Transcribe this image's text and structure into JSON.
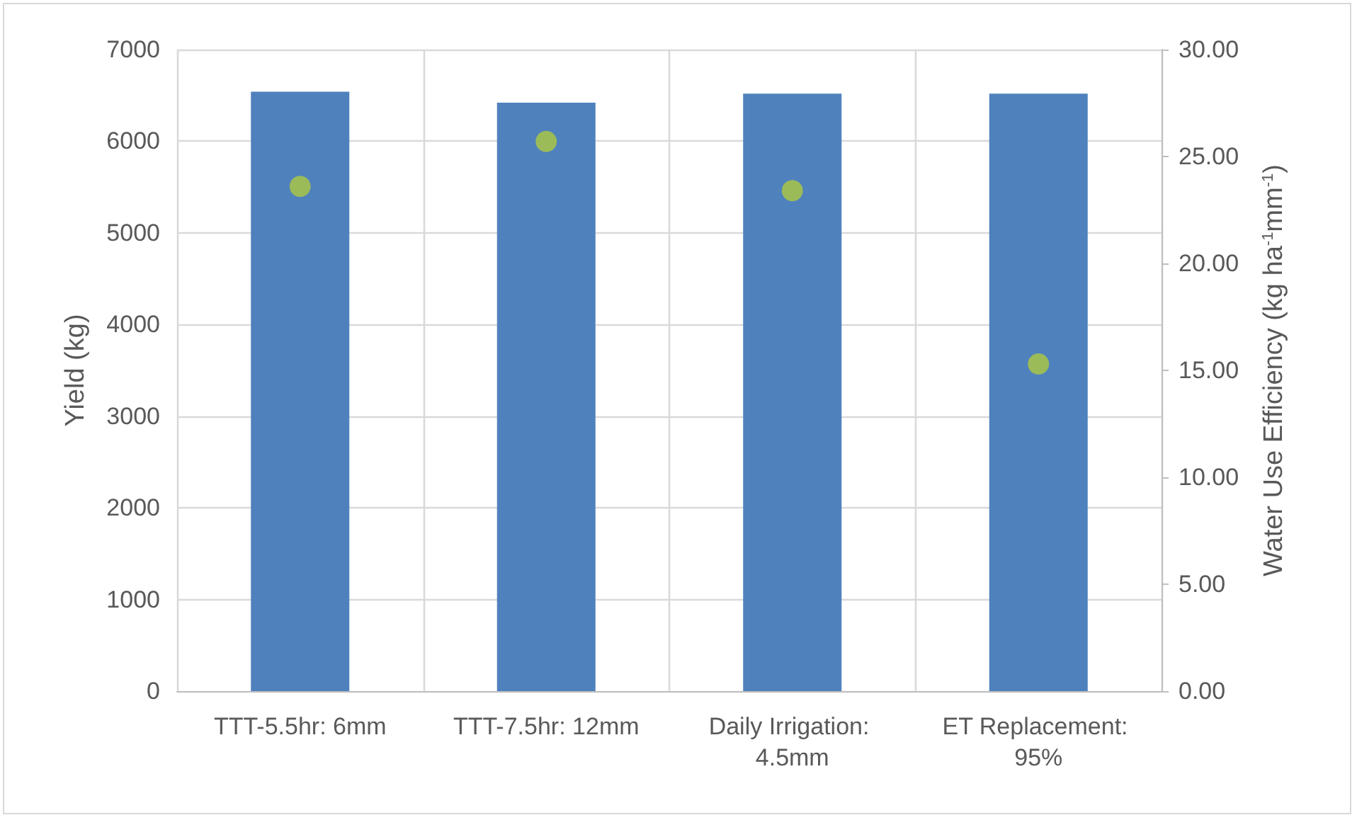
{
  "chart_data": {
    "type": "bar",
    "categories": [
      "TTT-5.5hr: 6mm",
      "TTT-7.5hr: 12mm",
      "Daily Irrigation: 4.5mm",
      "ET Replacement: 95%"
    ],
    "ylabel": "Yield (kg)",
    "y2label": "Water Use Efficiency (kg ha$^{-1}$mm$^{-1}$)",
    "series": [
      {
        "color": "#4f81bd",
        "values": [
          6540,
          6420,
          6520,
          6520
        ]
      },
      {
        "type": "scatter",
        "axis": "y2",
        "color": "#9bbb59",
        "x": [
          "TTT-5.5hr: 6mm",
          "TTT-7.5hr: 12mm",
          "Daily Irrigation: 4.5mm",
          "ET Replacement: 95%"
        ],
        "values": [
          23.6,
          25.7,
          23.4,
          15.3
        ]
      }
    ],
    "ylim": [
      0,
      7000
    ],
    "yticks": [
      0,
      1000,
      2000,
      3000,
      4000,
      5000,
      6000,
      7000
    ],
    "y2lim": [
      0,
      30
    ],
    "y2ticks": [
      {
        "value": 0,
        "label": "0.00"
      },
      {
        "value": 5,
        "label": "5.00"
      },
      {
        "value": 10,
        "label": "10.00"
      },
      {
        "value": 15,
        "label": "15.00"
      },
      {
        "value": 20,
        "label": "20.00"
      },
      {
        "value": 25,
        "label": "25.00"
      },
      {
        "value": 30,
        "label": "30.00"
      }
    ],
    "grid": true,
    "marker": "circle"
  }
}
